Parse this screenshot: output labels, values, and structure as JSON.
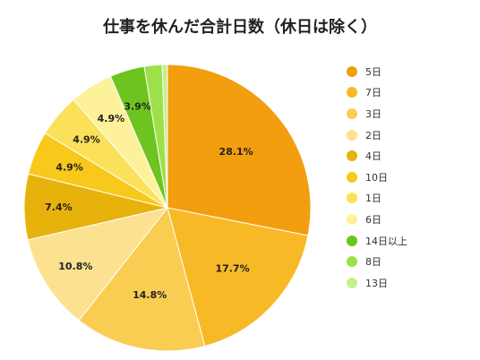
{
  "chart_data": {
    "type": "pie",
    "title": "仕事を休んだ合計日数（休日は除く）",
    "start_angle_deg": 0,
    "direction": "clockwise",
    "legend_position": "right",
    "slices": [
      {
        "label": "5日",
        "value": 28.1,
        "display": "28.1%",
        "color": "#f29e0f"
      },
      {
        "label": "7日",
        "value": 17.7,
        "display": "17.7%",
        "color": "#f7b926"
      },
      {
        "label": "3日",
        "value": 14.8,
        "display": "14.8%",
        "color": "#f9cd52"
      },
      {
        "label": "2日",
        "value": 10.8,
        "display": "10.8%",
        "color": "#fbe190"
      },
      {
        "label": "4日",
        "value": 7.4,
        "display": "7.4%",
        "color": "#e8b20d"
      },
      {
        "label": "10日",
        "value": 4.9,
        "display": "4.9%",
        "color": "#f8c81a"
      },
      {
        "label": "1日",
        "value": 4.9,
        "display": "4.9%",
        "color": "#fbe05a"
      },
      {
        "label": "6日",
        "value": 4.9,
        "display": "4.9%",
        "color": "#fdf19a"
      },
      {
        "label": "14日以上",
        "value": 3.9,
        "display": "3.9%",
        "color": "#6ec41e"
      },
      {
        "label": "8日",
        "value": 2.0,
        "display": "",
        "color": "#9ee04a"
      },
      {
        "label": "13日",
        "value": 0.6,
        "display": "",
        "color": "#c6f08a"
      }
    ]
  }
}
